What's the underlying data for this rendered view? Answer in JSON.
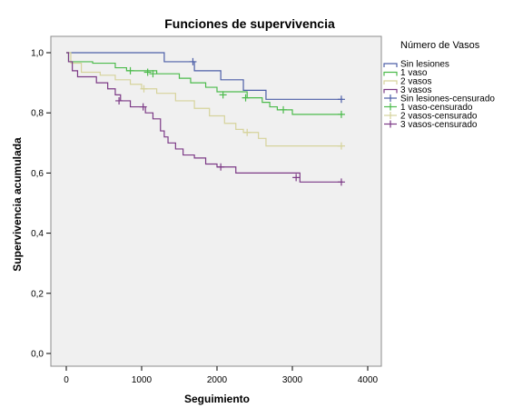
{
  "chart_data": {
    "type": "line",
    "step": true,
    "title": "Funciones de supervivencia",
    "xlabel": "Seguimiento",
    "ylabel": "Supervivencia acumulada",
    "xlim": [
      0,
      4000
    ],
    "ylim": [
      0.0,
      1.0
    ],
    "x_ticks": [
      0,
      1000,
      2000,
      3000,
      4000
    ],
    "y_ticks": [
      "0,0",
      "0,2",
      "0,4",
      "0,6",
      "0,8",
      "1,0"
    ],
    "y_tick_values": [
      0.0,
      0.2,
      0.4,
      0.6,
      0.8,
      1.0
    ],
    "grid": false,
    "legend_placement": "right",
    "legend_title": "Número de Vasos",
    "series": [
      {
        "name": "Sin lesiones",
        "censored_name": "Sin lesiones-censurado",
        "color": "#4d5fa8",
        "x": [
          0,
          1300,
          1700,
          2050,
          2350,
          2650,
          3670
        ],
        "y": [
          1.0,
          0.97,
          0.94,
          0.91,
          0.875,
          0.845,
          0.845
        ],
        "censored_x": [
          1680,
          3650
        ],
        "censored_y": [
          0.97,
          0.845
        ]
      },
      {
        "name": "1 vaso",
        "censored_name": "1 vaso-censurado",
        "color": "#4cbb4c",
        "x": [
          0,
          30,
          350,
          650,
          800,
          1200,
          1500,
          1650,
          1850,
          2000,
          2400,
          2600,
          2700,
          2800,
          3000,
          3670
        ],
        "y": [
          1.0,
          0.97,
          0.965,
          0.95,
          0.94,
          0.93,
          0.915,
          0.9,
          0.885,
          0.87,
          0.85,
          0.835,
          0.82,
          0.81,
          0.795,
          0.795
        ],
        "censored_x": [
          850,
          1080,
          1150,
          2080,
          2380,
          2880,
          3650
        ],
        "censored_y": [
          0.94,
          0.935,
          0.93,
          0.86,
          0.85,
          0.81,
          0.795
        ]
      },
      {
        "name": "2 vasos",
        "censored_name": "2 vasos-censurado",
        "color": "#d6d39c",
        "x": [
          0,
          60,
          200,
          450,
          650,
          850,
          1000,
          1200,
          1450,
          1700,
          1900,
          2100,
          2250,
          2350,
          2550,
          2650,
          3670
        ],
        "y": [
          1.0,
          0.965,
          0.935,
          0.925,
          0.91,
          0.895,
          0.88,
          0.865,
          0.84,
          0.815,
          0.79,
          0.765,
          0.745,
          0.735,
          0.715,
          0.69,
          0.69
        ],
        "censored_x": [
          1030,
          2400,
          3650
        ],
        "censored_y": [
          0.88,
          0.735,
          0.69
        ]
      },
      {
        "name": "3 vasos",
        "censored_name": "3 vasos-censurado",
        "color": "#7c3a86",
        "x": [
          0,
          30,
          80,
          150,
          400,
          550,
          650,
          720,
          850,
          1050,
          1150,
          1250,
          1300,
          1350,
          1450,
          1550,
          1700,
          1850,
          2000,
          2250,
          3100,
          3670
        ],
        "y": [
          1.0,
          0.97,
          0.94,
          0.92,
          0.9,
          0.88,
          0.86,
          0.84,
          0.82,
          0.8,
          0.78,
          0.74,
          0.72,
          0.7,
          0.68,
          0.66,
          0.65,
          0.63,
          0.62,
          0.6,
          0.57,
          0.57
        ],
        "censored_x": [
          700,
          1020,
          2050,
          3050,
          3650
        ],
        "censored_y": [
          0.84,
          0.82,
          0.62,
          0.585,
          0.57
        ]
      }
    ]
  }
}
